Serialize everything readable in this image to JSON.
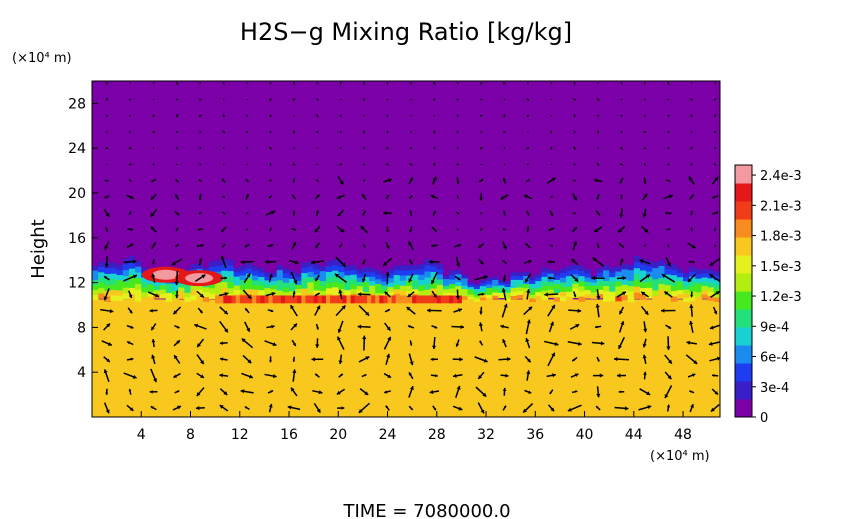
{
  "chart_data": {
    "type": "heatmap",
    "title": "H2S−g Mixing Ratio [kg/kg]",
    "xlabel": "",
    "ylabel": "Height",
    "x_unit": "(×10⁴ m)",
    "y_unit": "(×10⁴ m)",
    "xlim": [
      0,
      51
    ],
    "ylim": [
      0,
      30
    ],
    "x_ticks": [
      4,
      8,
      12,
      16,
      20,
      24,
      28,
      32,
      36,
      40,
      44,
      48
    ],
    "y_ticks": [
      4,
      8,
      12,
      16,
      20,
      24,
      28
    ],
    "x_tick_labels": [
      "4",
      "8",
      "12",
      "16",
      "20",
      "24",
      "28",
      "32",
      "36",
      "40",
      "44",
      "48"
    ],
    "y_tick_labels": [
      "4",
      "8",
      "12",
      "16",
      "20",
      "24",
      "28"
    ],
    "colorbar": {
      "min": 0,
      "max": 0.0025,
      "tick_values": [
        0,
        0.0003,
        0.0006,
        0.0009,
        0.0012,
        0.0015,
        0.0018,
        0.0021,
        0.0024
      ],
      "tick_labels": [
        "0",
        "3e-4",
        "6e-4",
        "9e-4",
        "1.2e-3",
        "1.5e-3",
        "1.8e-3",
        "2.1e-3",
        "2.4e-3"
      ],
      "colors": [
        "#7b00a8",
        "#3a1fc8",
        "#1e3cf0",
        "#1a8cf0",
        "#18d2d2",
        "#22e07a",
        "#46e81e",
        "#b4ee10",
        "#e6f01c",
        "#f8c81e",
        "#f88c1e",
        "#f03c18",
        "#e41818",
        "#f29aa0"
      ]
    },
    "fields": {
      "upper_level_value": 0,
      "lower_level_value": 0.00172,
      "layer_top_height": 14,
      "layer_base_height": 10.5,
      "high_band": {
        "x_range": [
          10,
          30
        ],
        "height": 10.5,
        "value": 0.0021
      },
      "hot_spots": [
        {
          "x": 6,
          "y": 12.7,
          "value": 0.0024
        },
        {
          "x": 8.7,
          "y": 12.4,
          "value": 0.0024
        }
      ]
    },
    "vectors": "wind arrows overlaid on a regular grid",
    "time_label": "TIME  =  7080000.0"
  }
}
